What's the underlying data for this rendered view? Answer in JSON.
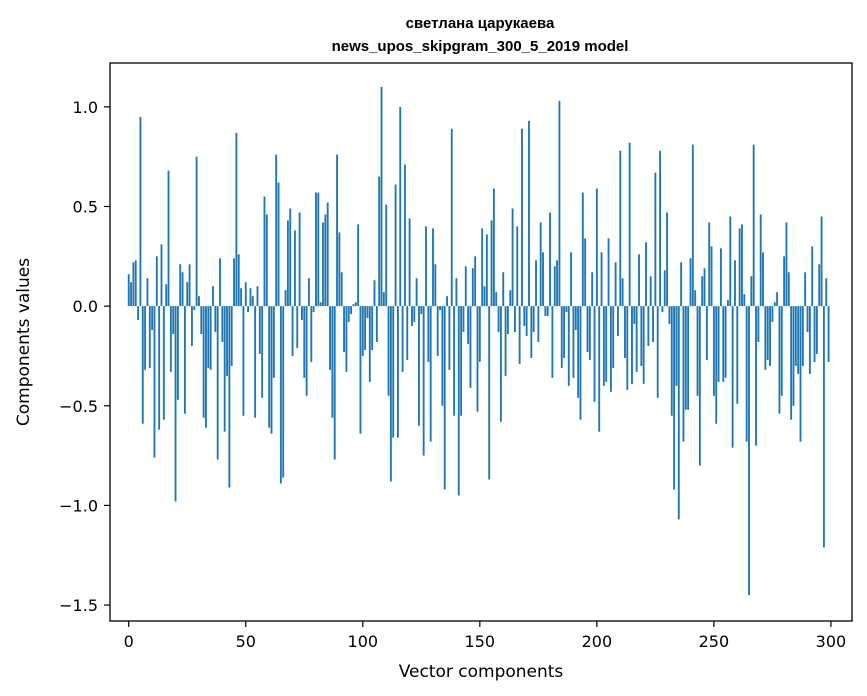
{
  "chart_data": {
    "type": "bar",
    "title": "светлана царукаева",
    "subtitle": "news_upos_skipgram_300_5_2019 model",
    "xlabel": "Vector components",
    "ylabel": "Components values",
    "xlim": [
      -8,
      309
    ],
    "ylim": [
      -1.58,
      1.22
    ],
    "xticks": [
      0,
      50,
      100,
      150,
      200,
      250,
      300
    ],
    "xtick_labels": [
      "0",
      "50",
      "100",
      "150",
      "200",
      "250",
      "300"
    ],
    "yticks": [
      1.0,
      0.5,
      0.0,
      -0.5,
      -1.0,
      -1.5
    ],
    "ytick_labels": [
      "1.0",
      "0.5",
      "0.0",
      "−0.5",
      "−1.0",
      "−1.5"
    ],
    "grid": false,
    "bar_color": "#1f77b4",
    "x": "0..299",
    "values": [
      0.16,
      0.12,
      0.22,
      0.23,
      -0.07,
      0.95,
      -0.59,
      -0.32,
      0.14,
      -0.31,
      -0.12,
      -0.76,
      0.25,
      -0.62,
      0.31,
      -0.57,
      0.11,
      0.68,
      -0.33,
      -0.14,
      -0.98,
      -0.47,
      0.21,
      0.17,
      -0.54,
      0.12,
      0.21,
      -0.2,
      -0.02,
      0.75,
      0.05,
      -0.14,
      -0.56,
      -0.61,
      -0.31,
      -0.32,
      0.1,
      -0.13,
      -0.77,
      0.24,
      -0.18,
      -0.63,
      -0.35,
      -0.91,
      -0.3,
      0.24,
      0.87,
      0.26,
      0.09,
      -0.55,
      0.12,
      -0.03,
      0.09,
      0.05,
      -0.56,
      0.1,
      -0.24,
      -0.46,
      0.55,
      0.46,
      -0.61,
      -0.64,
      -0.36,
      0.76,
      0.62,
      -0.89,
      -0.86,
      0.08,
      0.43,
      0.49,
      -0.25,
      0.38,
      -0.21,
      0.47,
      -0.07,
      -0.36,
      -0.45,
      0.14,
      -0.28,
      -0.03,
      0.57,
      0.57,
      0.02,
      0.42,
      0.46,
      0.52,
      -0.32,
      -0.56,
      -0.77,
      0.76,
      0.37,
      0.17,
      -0.23,
      -0.33,
      -0.08,
      -0.04,
      0.01,
      0.02,
      0.41,
      -0.64,
      -0.25,
      -0.22,
      -0.06,
      -0.38,
      -0.22,
      0.13,
      -0.18,
      0.65,
      1.1,
      0.07,
      0.51,
      -0.45,
      -0.88,
      -0.66,
      0.61,
      -0.66,
      1.0,
      -0.33,
      0.71,
      -0.27,
      0.44,
      -0.1,
      -0.08,
      0.14,
      -0.6,
      -0.04,
      -0.75,
      0.4,
      -0.28,
      -0.68,
      0.39,
      0.21,
      -0.25,
      -0.02,
      -0.5,
      -0.92,
      0.05,
      -0.32,
      0.89,
      -0.55,
      0.14,
      -0.95,
      -0.55,
      -0.13,
      0.2,
      -0.19,
      -0.41,
      0.19,
      0.25,
      -0.53,
      -0.28,
      0.39,
      0.1,
      0.36,
      -0.87,
      0.43,
      0.59,
      0.07,
      -0.13,
      -0.58,
      0.17,
      -0.35,
      -0.14,
      0.08,
      0.49,
      -0.13,
      0.4,
      -0.29,
      0.89,
      -0.1,
      -0.15,
      0.93,
      -0.26,
      -0.13,
      0.23,
      -0.18,
      0.42,
      0.27,
      -0.05,
      -0.05,
      0.47,
      -0.36,
      0.2,
      0.23,
      1.03,
      -0.31,
      -0.26,
      -0.03,
      -0.4,
      0.27,
      -0.36,
      -0.12,
      -0.46,
      -0.57,
      0.57,
      0.34,
      -0.23,
      -0.27,
      0.17,
      -0.48,
      0.59,
      -0.63,
      0.27,
      -0.4,
      -0.38,
      0.34,
      -0.43,
      -0.31,
      0.22,
      -0.15,
      0.78,
      0.14,
      -0.26,
      -0.42,
      0.82,
      -0.39,
      -0.09,
      -0.33,
      0.26,
      -0.3,
      -0.39,
      0.32,
      -0.2,
      0.15,
      -0.18,
      0.67,
      -0.46,
      0.78,
      -0.03,
      0.18,
      0.47,
      -0.09,
      -0.55,
      -0.92,
      -0.4,
      -1.07,
      0.22,
      -0.68,
      -0.52,
      -0.52,
      0.24,
      0.81,
      0.08,
      -0.45,
      -0.8,
      0.15,
      0.19,
      -0.27,
      0.42,
      0.3,
      -0.45,
      -0.59,
      -0.38,
      0.29,
      -0.38,
      -0.36,
      0.03,
      0.45,
      -0.71,
      0.23,
      -0.49,
      0.39,
      0.41,
      0.06,
      -0.68,
      -1.45,
      0.15,
      0.81,
      -0.7,
      -0.18,
      0.46,
      0.27,
      -0.32,
      -0.27,
      -0.3,
      -0.08,
      0.02,
      0.07,
      -0.54,
      -0.45,
      0.25,
      0.42,
      0.17,
      -0.57,
      -0.5,
      -0.3,
      -0.34,
      -0.68,
      -0.3,
      0.17,
      -0.13,
      -0.34,
      0.3,
      -0.28,
      -0.24,
      0.21,
      0.45,
      -1.21,
      0.14,
      -0.28
    ]
  }
}
